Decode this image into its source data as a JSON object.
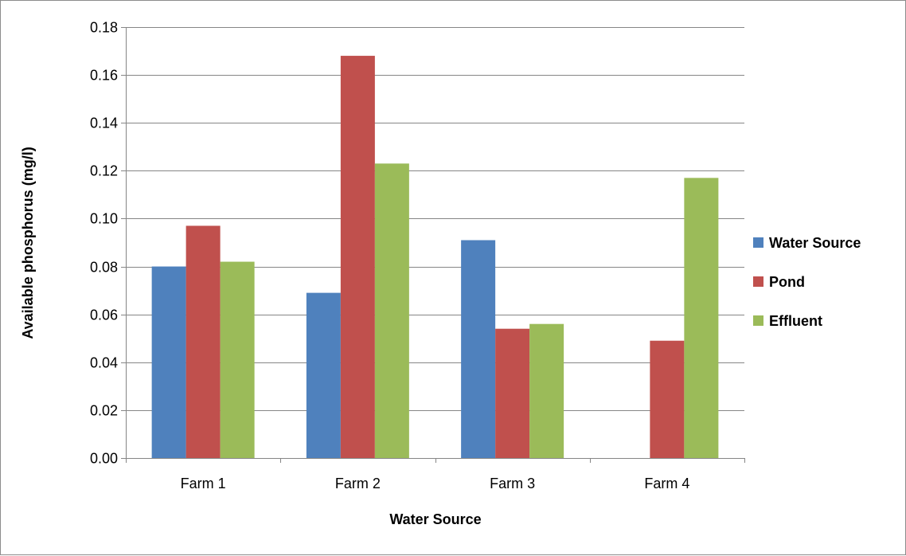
{
  "chart_data": {
    "type": "bar",
    "title": "",
    "xlabel": "Water Source",
    "ylabel": "Available phosphorus (mg/l)",
    "categories": [
      "Farm 1",
      "Farm 2",
      "Farm 3",
      "Farm 4"
    ],
    "series": [
      {
        "name": "Water Source",
        "color": "#4F81BD",
        "values": [
          0.08,
          0.069,
          0.091,
          0
        ]
      },
      {
        "name": "Pond",
        "color": "#C0504D",
        "values": [
          0.097,
          0.168,
          0.054,
          0.049
        ]
      },
      {
        "name": "Effluent",
        "color": "#9BBB59",
        "values": [
          0.082,
          0.123,
          0.056,
          0.117
        ]
      }
    ],
    "ylim": [
      0,
      0.18
    ],
    "ytick_labels": [
      "0.00",
      "0.02",
      "0.04",
      "0.06",
      "0.08",
      "0.10",
      "0.12",
      "0.14",
      "0.16",
      "0.18"
    ],
    "grid": true,
    "legend_position": "right"
  }
}
